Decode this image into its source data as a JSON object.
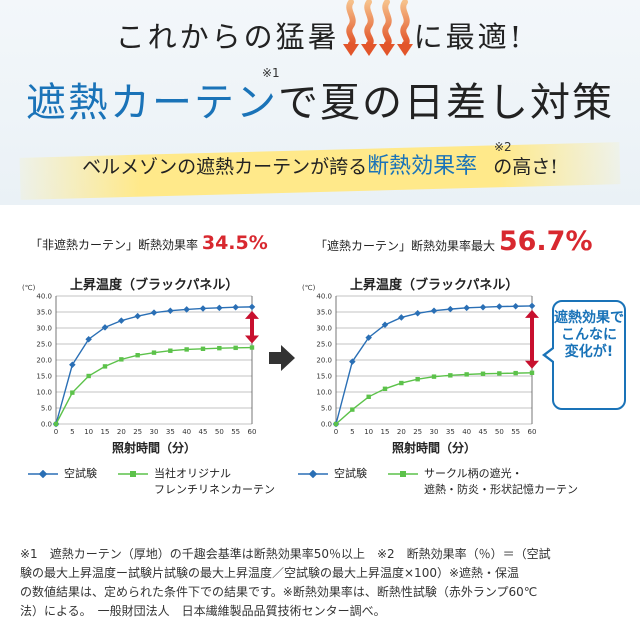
{
  "headline": {
    "line1_left": "これからの猛暑",
    "line1_right": "に最適!",
    "line2_blue": "遮熱カーテン",
    "line2_note": "※1",
    "line2_rest": "で夏の日差し対策",
    "tagline_pre": "ベルメゾンの遮熱カーテンが誇る",
    "tagline_accent": "断熱効果率",
    "tagline_note": "※2",
    "tagline_post": "の高さ!"
  },
  "comparison": {
    "left_label": "「非遮熱カーテン」断熱効果率",
    "left_value": "34.5%",
    "right_label": "「遮熱カーテン」断熱効果率最大",
    "right_value": "56.7%"
  },
  "callout": {
    "lines": [
      "遮熱効果で",
      "こんなに",
      "変化が!"
    ]
  },
  "legend": {
    "left": {
      "blank": "空試験",
      "product_line1": "当社オリジナル",
      "product_line2": "フレンチリネンカーテン"
    },
    "right": {
      "blank": "空試験",
      "product_line1": "サークル柄の遮光・",
      "product_line2": "遮熱・防炎・形状記憶カーテン"
    }
  },
  "colors": {
    "blank_series": "#2a6fb5",
    "product_series": "#5cc24a",
    "diff_arrow": "#c8102e",
    "accent_blue": "#1a73b8",
    "value_red": "#d8282f"
  },
  "icons": {
    "heat": "heat-wave-arrows-icon",
    "transition": "right-arrow-icon"
  },
  "footnote": {
    "lines": [
      "※1　遮熱カーテン（厚地）の千趣会基準は断熱効果率50％以上　※2　断熱効果率（％）＝（空試",
      "験の最大上昇温度ー試験片試験の最大上昇温度／空試験の最大上昇温度×100）※遮熱・保温",
      "の数値結果は、定められた条件下での結果です。※断熱効果率は、断熱性試験（赤外ランプ60℃",
      "法）による。　一般財団法人　日本繊維製品品質技術センター調べ。"
    ]
  },
  "chart_data": [
    {
      "type": "line",
      "title": "上昇温度（ブラックパネル）",
      "xlabel": "照射時間（分）",
      "ylabel": "(℃)",
      "x": [
        0,
        5,
        10,
        15,
        20,
        25,
        30,
        35,
        40,
        45,
        50,
        55,
        60
      ],
      "xticks": [
        "0",
        "5",
        "10",
        "15",
        "20",
        "25",
        "30",
        "35",
        "40",
        "45",
        "50",
        "55",
        "60"
      ],
      "yticks": [
        "0.0",
        "5.0",
        "10.0",
        "15.0",
        "20.0",
        "25.0",
        "30.0",
        "35.0",
        "40.0"
      ],
      "ylim": [
        0,
        40
      ],
      "grid": true,
      "legend": "bottom",
      "series": [
        {
          "name": "空試験",
          "values": [
            0,
            18.5,
            26.5,
            30.2,
            32.3,
            33.7,
            34.8,
            35.4,
            35.8,
            36.1,
            36.3,
            36.5,
            36.6
          ]
        },
        {
          "name": "当社オリジナル フレンチリネンカーテン",
          "values": [
            0,
            9.8,
            15,
            18,
            20.2,
            21.5,
            22.3,
            22.9,
            23.3,
            23.5,
            23.7,
            23.8,
            23.9
          ]
        }
      ]
    },
    {
      "type": "line",
      "title": "上昇温度（ブラックパネル）",
      "xlabel": "照射時間（分）",
      "ylabel": "(℃)",
      "x": [
        0,
        5,
        10,
        15,
        20,
        25,
        30,
        35,
        40,
        45,
        50,
        55,
        60
      ],
      "xticks": [
        "0",
        "5",
        "10",
        "15",
        "20",
        "25",
        "30",
        "35",
        "40",
        "45",
        "50",
        "55",
        "60"
      ],
      "yticks": [
        "0.0",
        "5.0",
        "10.0",
        "15.0",
        "20.0",
        "25.0",
        "30.0",
        "35.0",
        "40.0"
      ],
      "ylim": [
        0,
        40
      ],
      "grid": true,
      "legend": "bottom",
      "series": [
        {
          "name": "空試験",
          "values": [
            0,
            19.5,
            27,
            31,
            33.3,
            34.6,
            35.4,
            35.9,
            36.3,
            36.5,
            36.7,
            36.8,
            36.9
          ]
        },
        {
          "name": "サークル柄の遮光・遮熱・防炎・形状記憶カーテン",
          "values": [
            0,
            4.5,
            8.5,
            11,
            12.8,
            14,
            14.8,
            15.2,
            15.5,
            15.7,
            15.8,
            15.9,
            16
          ]
        }
      ]
    }
  ]
}
